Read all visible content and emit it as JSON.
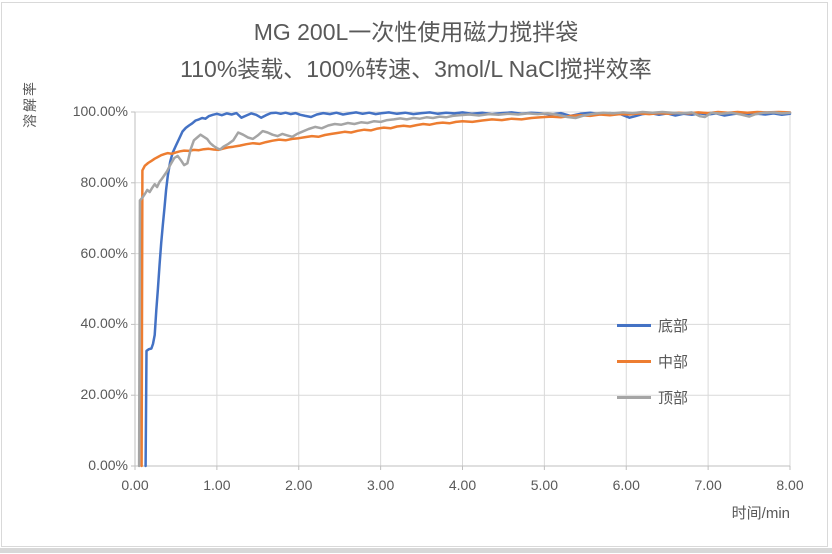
{
  "chart_data": {
    "type": "line",
    "title_line1": "MG 200L一次性使用磁力搅拌袋",
    "title_line2": "110%装载、100%转速、3mol/L NaCl搅拌效率",
    "xlabel": "时间/min",
    "ylabel": "溶解率",
    "xlim": [
      0,
      8
    ],
    "ylim_pct": [
      0,
      100
    ],
    "grid": true,
    "legend_position": "inside-right",
    "x_ticks": [
      {
        "label": "0.00",
        "value": 0
      },
      {
        "label": "1.00",
        "value": 1
      },
      {
        "label": "2.00",
        "value": 2
      },
      {
        "label": "3.00",
        "value": 3
      },
      {
        "label": "4.00",
        "value": 4
      },
      {
        "label": "5.00",
        "value": 5
      },
      {
        "label": "6.00",
        "value": 6
      },
      {
        "label": "7.00",
        "value": 7
      },
      {
        "label": "8.00",
        "value": 8
      }
    ],
    "y_ticks": [
      {
        "label": "0.00%",
        "value": 0
      },
      {
        "label": "20.00%",
        "value": 20
      },
      {
        "label": "40.00%",
        "value": 40
      },
      {
        "label": "60.00%",
        "value": 60
      },
      {
        "label": "80.00%",
        "value": 80
      },
      {
        "label": "100.00%",
        "value": 100
      }
    ],
    "colors": {
      "gridline": "#D9D9D9",
      "axis": "#BFBFBF",
      "text": "#595959",
      "background": "#FFFFFF"
    },
    "series": [
      {
        "name": "底部",
        "key": "bottom",
        "color": "#4472C4",
        "points": [
          [
            0.13,
            0
          ],
          [
            0.14,
            32.5
          ],
          [
            0.17,
            33
          ],
          [
            0.2,
            33.2
          ],
          [
            0.22,
            34.5
          ],
          [
            0.24,
            37
          ],
          [
            0.26,
            44
          ],
          [
            0.28,
            50
          ],
          [
            0.3,
            57
          ],
          [
            0.32,
            63
          ],
          [
            0.34,
            68
          ],
          [
            0.36,
            73
          ],
          [
            0.38,
            78
          ],
          [
            0.4,
            82
          ],
          [
            0.43,
            86
          ],
          [
            0.46,
            88.5
          ],
          [
            0.5,
            90.5
          ],
          [
            0.54,
            92.5
          ],
          [
            0.58,
            94.5
          ],
          [
            0.62,
            95.5
          ],
          [
            0.66,
            96.2
          ],
          [
            0.7,
            96.8
          ],
          [
            0.74,
            97.6
          ],
          [
            0.78,
            97.9
          ],
          [
            0.82,
            98.3
          ],
          [
            0.86,
            98.1
          ],
          [
            0.9,
            98.8
          ],
          [
            0.95,
            99.2
          ],
          [
            1.0,
            99.5
          ],
          [
            1.06,
            99.1
          ],
          [
            1.12,
            99.6
          ],
          [
            1.18,
            99.3
          ],
          [
            1.24,
            99.7
          ],
          [
            1.3,
            98.4
          ],
          [
            1.36,
            99.0
          ],
          [
            1.42,
            99.6
          ],
          [
            1.48,
            99.2
          ],
          [
            1.54,
            98.4
          ],
          [
            1.6,
            99.1
          ],
          [
            1.66,
            99.7
          ],
          [
            1.72,
            99.8
          ],
          [
            1.78,
            99.5
          ],
          [
            1.84,
            99.8
          ],
          [
            1.9,
            99.4
          ],
          [
            1.96,
            99.7
          ],
          [
            2.02,
            99.2
          ],
          [
            2.08,
            98.9
          ],
          [
            2.15,
            98.6
          ],
          [
            2.22,
            99.3
          ],
          [
            2.3,
            99.7
          ],
          [
            2.38,
            99.4
          ],
          [
            2.46,
            99.8
          ],
          [
            2.54,
            99.3
          ],
          [
            2.62,
            99.6
          ],
          [
            2.7,
            99.9
          ],
          [
            2.78,
            99.5
          ],
          [
            2.86,
            99.8
          ],
          [
            2.94,
            99.4
          ],
          [
            3.02,
            99.7
          ],
          [
            3.1,
            99.9
          ],
          [
            3.2,
            99.5
          ],
          [
            3.3,
            99.8
          ],
          [
            3.4,
            99.4
          ],
          [
            3.5,
            99.7
          ],
          [
            3.6,
            99.9
          ],
          [
            3.7,
            99.5
          ],
          [
            3.8,
            99.8
          ],
          [
            3.9,
            99.6
          ],
          [
            4.0,
            99.9
          ],
          [
            4.12,
            99.5
          ],
          [
            4.24,
            99.8
          ],
          [
            4.36,
            99.4
          ],
          [
            4.48,
            99.7
          ],
          [
            4.6,
            99.9
          ],
          [
            4.72,
            99.5
          ],
          [
            4.84,
            99.8
          ],
          [
            4.96,
            99.6
          ],
          [
            5.08,
            99.3
          ],
          [
            5.2,
            99.7
          ],
          [
            5.32,
            98.9
          ],
          [
            5.44,
            99.5
          ],
          [
            5.56,
            99.8
          ],
          [
            5.68,
            99.4
          ],
          [
            5.8,
            99.7
          ],
          [
            5.92,
            99.5
          ],
          [
            6.04,
            98.4
          ],
          [
            6.12,
            98.9
          ],
          [
            6.2,
            99.4
          ],
          [
            6.3,
            99.7
          ],
          [
            6.4,
            99.2
          ],
          [
            6.5,
            99.6
          ],
          [
            6.6,
            99.0
          ],
          [
            6.7,
            99.5
          ],
          [
            6.8,
            99.2
          ],
          [
            6.9,
            99.6
          ],
          [
            7.0,
            99.3
          ],
          [
            7.1,
            99.6
          ],
          [
            7.2,
            99.0
          ],
          [
            7.3,
            99.4
          ],
          [
            7.4,
            99.7
          ],
          [
            7.5,
            99.2
          ],
          [
            7.6,
            99.5
          ],
          [
            7.7,
            99.3
          ],
          [
            7.8,
            99.6
          ],
          [
            7.9,
            99.2
          ],
          [
            8.0,
            99.5
          ]
        ]
      },
      {
        "name": "中部",
        "key": "middle",
        "color": "#ED7D31",
        "points": [
          [
            0.08,
            0
          ],
          [
            0.09,
            83.5
          ],
          [
            0.12,
            84.8
          ],
          [
            0.16,
            85.6
          ],
          [
            0.2,
            86.2
          ],
          [
            0.24,
            86.8
          ],
          [
            0.28,
            87.3
          ],
          [
            0.32,
            87.8
          ],
          [
            0.36,
            88.1
          ],
          [
            0.4,
            88.4
          ],
          [
            0.45,
            88.2
          ],
          [
            0.5,
            88.6
          ],
          [
            0.55,
            88.9
          ],
          [
            0.6,
            89.1
          ],
          [
            0.66,
            89.0
          ],
          [
            0.72,
            89.3
          ],
          [
            0.78,
            89.2
          ],
          [
            0.84,
            89.5
          ],
          [
            0.9,
            89.6
          ],
          [
            0.96,
            89.4
          ],
          [
            1.02,
            89.3
          ],
          [
            1.08,
            89.7
          ],
          [
            1.14,
            90.0
          ],
          [
            1.2,
            90.2
          ],
          [
            1.28,
            90.5
          ],
          [
            1.36,
            90.9
          ],
          [
            1.44,
            91.2
          ],
          [
            1.52,
            91.0
          ],
          [
            1.6,
            91.5
          ],
          [
            1.68,
            91.9
          ],
          [
            1.76,
            92.2
          ],
          [
            1.84,
            92.0
          ],
          [
            1.92,
            92.4
          ],
          [
            2.0,
            92.6
          ],
          [
            2.08,
            92.9
          ],
          [
            2.16,
            93.2
          ],
          [
            2.24,
            93.0
          ],
          [
            2.32,
            93.5
          ],
          [
            2.4,
            93.8
          ],
          [
            2.48,
            94.1
          ],
          [
            2.56,
            94.4
          ],
          [
            2.64,
            94.2
          ],
          [
            2.72,
            94.7
          ],
          [
            2.8,
            95.0
          ],
          [
            2.88,
            94.8
          ],
          [
            2.96,
            95.3
          ],
          [
            3.04,
            95.6
          ],
          [
            3.12,
            95.4
          ],
          [
            3.2,
            95.9
          ],
          [
            3.28,
            96.1
          ],
          [
            3.36,
            95.9
          ],
          [
            3.44,
            96.3
          ],
          [
            3.52,
            96.6
          ],
          [
            3.6,
            96.4
          ],
          [
            3.68,
            96.8
          ],
          [
            3.76,
            97.0
          ],
          [
            3.84,
            96.8
          ],
          [
            3.92,
            97.2
          ],
          [
            4.0,
            97.4
          ],
          [
            4.12,
            97.2
          ],
          [
            4.24,
            97.6
          ],
          [
            4.36,
            97.9
          ],
          [
            4.48,
            97.7
          ],
          [
            4.6,
            98.1
          ],
          [
            4.72,
            97.9
          ],
          [
            4.84,
            98.3
          ],
          [
            4.96,
            98.5
          ],
          [
            5.08,
            98.7
          ],
          [
            5.2,
            98.5
          ],
          [
            5.32,
            98.9
          ],
          [
            5.44,
            99.1
          ],
          [
            5.56,
            98.9
          ],
          [
            5.68,
            99.3
          ],
          [
            5.8,
            99.1
          ],
          [
            5.92,
            99.4
          ],
          [
            6.04,
            99.3
          ],
          [
            6.16,
            99.6
          ],
          [
            6.28,
            99.4
          ],
          [
            6.4,
            99.7
          ],
          [
            6.52,
            99.5
          ],
          [
            6.64,
            99.8
          ],
          [
            6.76,
            99.6
          ],
          [
            6.88,
            99.9
          ],
          [
            7.0,
            99.7
          ],
          [
            7.12,
            100
          ],
          [
            7.24,
            99.8
          ],
          [
            7.36,
            100
          ],
          [
            7.48,
            99.8
          ],
          [
            7.6,
            100
          ],
          [
            7.72,
            99.9
          ],
          [
            7.86,
            100
          ],
          [
            8.0,
            99.9
          ]
        ]
      },
      {
        "name": "顶部",
        "key": "top",
        "color": "#A5A5A5",
        "points": [
          [
            0.05,
            0
          ],
          [
            0.06,
            75
          ],
          [
            0.09,
            75.8
          ],
          [
            0.12,
            76.8
          ],
          [
            0.15,
            78
          ],
          [
            0.18,
            77.4
          ],
          [
            0.21,
            78.6
          ],
          [
            0.24,
            79.6
          ],
          [
            0.27,
            78.8
          ],
          [
            0.3,
            80.3
          ],
          [
            0.33,
            81.2
          ],
          [
            0.36,
            82.2
          ],
          [
            0.39,
            83.2
          ],
          [
            0.42,
            84.6
          ],
          [
            0.45,
            85.8
          ],
          [
            0.48,
            87
          ],
          [
            0.52,
            87.6
          ],
          [
            0.56,
            86.4
          ],
          [
            0.6,
            85
          ],
          [
            0.64,
            85.5
          ],
          [
            0.68,
            89.5
          ],
          [
            0.72,
            92
          ],
          [
            0.76,
            92.8
          ],
          [
            0.8,
            93.6
          ],
          [
            0.84,
            93
          ],
          [
            0.88,
            92.4
          ],
          [
            0.92,
            91.2
          ],
          [
            0.96,
            90.4
          ],
          [
            1.0,
            89.8
          ],
          [
            1.04,
            89.4
          ],
          [
            1.08,
            90.2
          ],
          [
            1.14,
            91
          ],
          [
            1.2,
            92
          ],
          [
            1.26,
            94.2
          ],
          [
            1.32,
            93.6
          ],
          [
            1.38,
            92.8
          ],
          [
            1.44,
            92.4
          ],
          [
            1.5,
            93.4
          ],
          [
            1.56,
            94.6
          ],
          [
            1.62,
            94.2
          ],
          [
            1.68,
            93.6
          ],
          [
            1.74,
            93.2
          ],
          [
            1.8,
            93.8
          ],
          [
            1.86,
            93.4
          ],
          [
            1.92,
            93
          ],
          [
            1.98,
            93.8
          ],
          [
            2.04,
            94.4
          ],
          [
            2.12,
            95.2
          ],
          [
            2.2,
            95.8
          ],
          [
            2.28,
            95.4
          ],
          [
            2.36,
            96.2
          ],
          [
            2.44,
            96.6
          ],
          [
            2.52,
            96.4
          ],
          [
            2.6,
            96.9
          ],
          [
            2.68,
            96.6
          ],
          [
            2.76,
            97.1
          ],
          [
            2.84,
            96.9
          ],
          [
            2.92,
            97.4
          ],
          [
            3.0,
            97.2
          ],
          [
            3.08,
            97.7
          ],
          [
            3.16,
            97.9
          ],
          [
            3.24,
            98.2
          ],
          [
            3.32,
            97.9
          ],
          [
            3.4,
            98.3
          ],
          [
            3.48,
            98.1
          ],
          [
            3.56,
            98.5
          ],
          [
            3.64,
            98.3
          ],
          [
            3.72,
            98.7
          ],
          [
            3.8,
            98.5
          ],
          [
            3.88,
            98.9
          ],
          [
            3.96,
            99.1
          ],
          [
            4.08,
            99.3
          ],
          [
            4.2,
            99.0
          ],
          [
            4.32,
            99.4
          ],
          [
            4.44,
            99.2
          ],
          [
            4.56,
            99.5
          ],
          [
            4.68,
            99.3
          ],
          [
            4.8,
            99.6
          ],
          [
            4.92,
            99.4
          ],
          [
            5.04,
            99.6
          ],
          [
            5.16,
            99.2
          ],
          [
            5.28,
            98.6
          ],
          [
            5.38,
            98.3
          ],
          [
            5.48,
            99.0
          ],
          [
            5.6,
            99.5
          ],
          [
            5.72,
            99.8
          ],
          [
            5.84,
            99.6
          ],
          [
            5.96,
            99.9
          ],
          [
            6.08,
            99.7
          ],
          [
            6.2,
            100
          ],
          [
            6.32,
            99.8
          ],
          [
            6.44,
            100
          ],
          [
            6.56,
            99.8
          ],
          [
            6.68,
            99.6
          ],
          [
            6.8,
            99.9
          ],
          [
            6.9,
            98.8
          ],
          [
            6.96,
            98.6
          ],
          [
            7.04,
            99.8
          ],
          [
            7.16,
            99.5
          ],
          [
            7.28,
            99.8
          ],
          [
            7.4,
            99.3
          ],
          [
            7.5,
            98.7
          ],
          [
            7.58,
            99.4
          ],
          [
            7.68,
            99.8
          ],
          [
            7.8,
            99.9
          ],
          [
            7.9,
            99.6
          ],
          [
            8.0,
            99.8
          ]
        ]
      }
    ]
  }
}
